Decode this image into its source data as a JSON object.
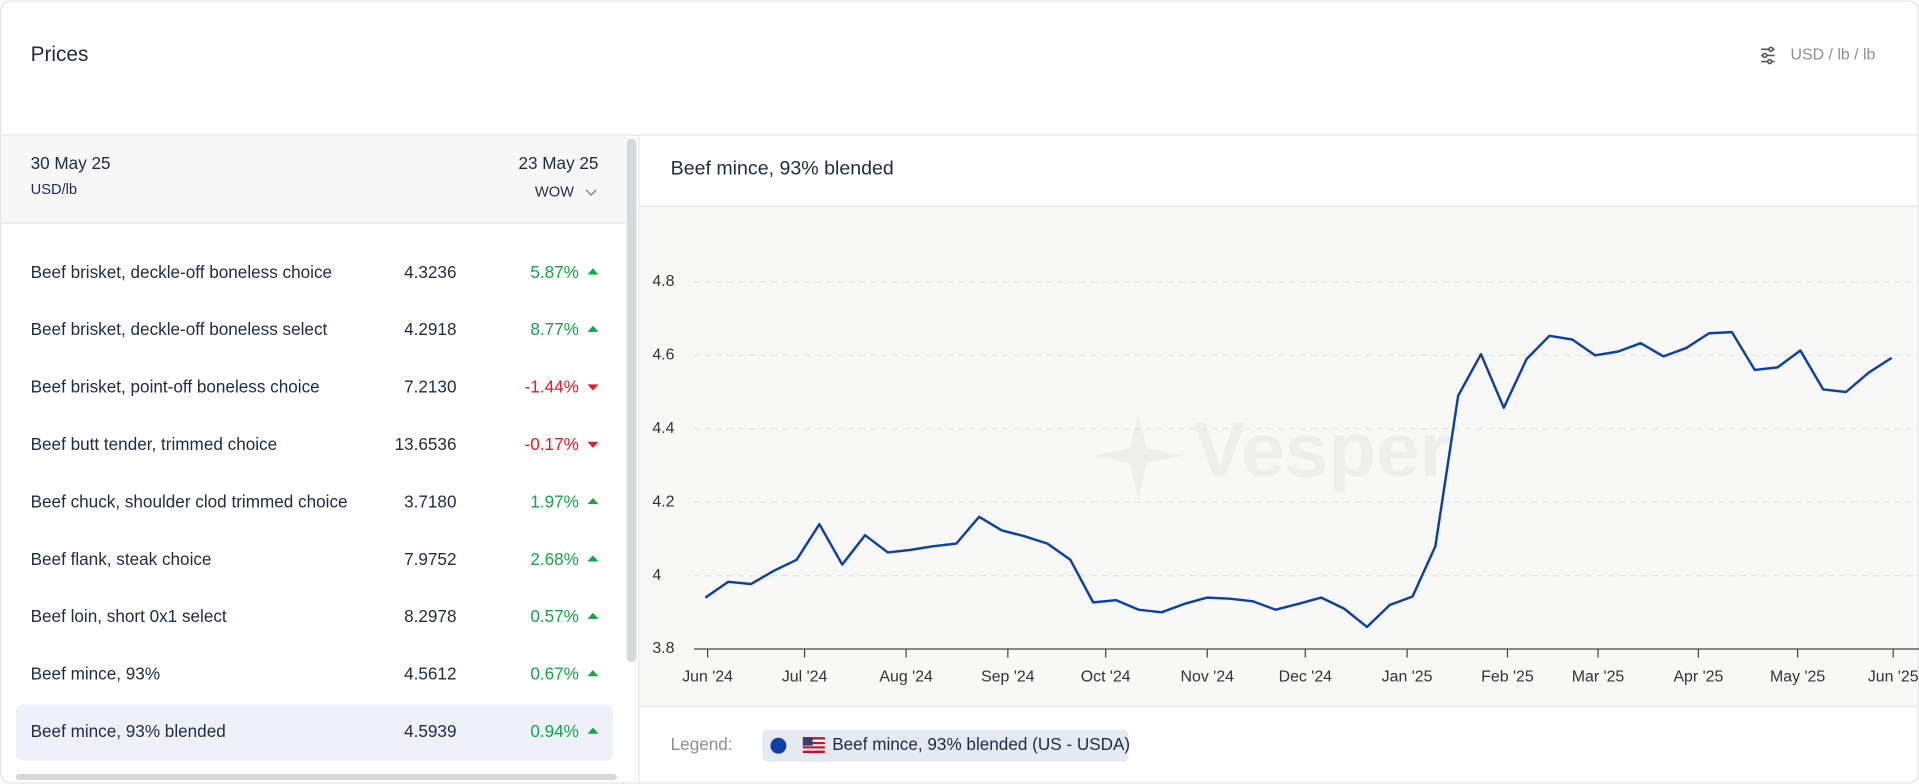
{
  "header": {
    "title": "Prices",
    "units": "USD / lb / lb"
  },
  "table": {
    "date": "30 May 25",
    "unit": "USD/lb",
    "compare_date": "23 May 25",
    "compare_mode": "WOW",
    "selected_row": 8,
    "rows": [
      {
        "name": "Beef brisket, deckle-off boneless choice",
        "price": "4.3236",
        "change": "5.87%",
        "trend": "up"
      },
      {
        "name": "Beef brisket, deckle-off boneless select",
        "price": "4.2918",
        "change": "8.77%",
        "trend": "up"
      },
      {
        "name": "Beef brisket, point-off boneless choice",
        "price": "7.2130",
        "change": "-1.44%",
        "trend": "down"
      },
      {
        "name": "Beef butt tender, trimmed choice",
        "price": "13.6536",
        "change": "-0.17%",
        "trend": "down"
      },
      {
        "name": "Beef chuck, shoulder clod trimmed choice",
        "price": "3.7180",
        "change": "1.97%",
        "trend": "up"
      },
      {
        "name": "Beef flank, steak choice",
        "price": "7.9752",
        "change": "2.68%",
        "trend": "up"
      },
      {
        "name": "Beef loin, short 0x1 select",
        "price": "8.2978",
        "change": "0.57%",
        "trend": "up"
      },
      {
        "name": "Beef mince, 93%",
        "price": "4.5612",
        "change": "0.67%",
        "trend": "up"
      },
      {
        "name": "Beef mince, 93% blended",
        "price": "4.5939",
        "change": "0.94%",
        "trend": "up"
      }
    ]
  },
  "chart_data": {
    "type": "line",
    "title": "Beef mince, 93% blended",
    "watermark": "Vesper",
    "legend_label": "Legend:",
    "categories": [
      null,
      null,
      null,
      null,
      null,
      null,
      null,
      null,
      null,
      null,
      null,
      null,
      null,
      null,
      null,
      null,
      null,
      null,
      null,
      null,
      null,
      null,
      null,
      null,
      null,
      null,
      null,
      null,
      null,
      null,
      null,
      null,
      null,
      null,
      null,
      null,
      null,
      null,
      null,
      null,
      null,
      null,
      null,
      null,
      null,
      null,
      null,
      null,
      null,
      null,
      null,
      null,
      null
    ],
    "series": [
      {
        "name": "Beef mince, 93% blended (US - USDA)",
        "color": "#0d3fa6",
        "values": [
          3.94,
          3.983,
          3.977,
          4.013,
          4.043,
          4.14,
          4.03,
          4.11,
          4.063,
          4.07,
          4.08,
          4.087,
          4.16,
          4.123,
          4.107,
          4.087,
          4.043,
          3.927,
          3.933,
          3.907,
          3.9,
          3.923,
          3.94,
          3.937,
          3.93,
          3.907,
          3.923,
          3.94,
          3.91,
          3.86,
          3.92,
          3.943,
          4.08,
          4.49,
          4.603,
          4.457,
          4.59,
          4.653,
          4.643,
          4.6,
          4.61,
          4.633,
          4.597,
          4.62,
          4.66,
          4.663,
          4.56,
          4.567,
          4.613,
          4.507,
          4.5,
          4.553,
          4.593
        ]
      }
    ],
    "xlim": [
      -0.5,
      53.2
    ],
    "xticks": [
      {
        "value": 0.1,
        "label": "Jun '24"
      },
      {
        "value": 4.35,
        "label": "Jul '24"
      },
      {
        "value": 8.8,
        "label": "Aug '24"
      },
      {
        "value": 13.26,
        "label": "Sep '24"
      },
      {
        "value": 17.55,
        "label": "Oct '24"
      },
      {
        "value": 22,
        "label": "Nov '24"
      },
      {
        "value": 26.3,
        "label": "Dec '24"
      },
      {
        "value": 30.76,
        "label": "Jan '25"
      },
      {
        "value": 35.16,
        "label": "Feb '25"
      },
      {
        "value": 39.13,
        "label": "Mar '25"
      },
      {
        "value": 43.53,
        "label": "Apr '25"
      },
      {
        "value": 47.88,
        "label": "May '25"
      },
      {
        "value": 52.07,
        "label": "Jun '25"
      }
    ],
    "ylim": [
      3.8,
      5.0
    ],
    "yticks": [
      3.8,
      4,
      4.2,
      4.4,
      4.6,
      4.8
    ],
    "grid": true
  }
}
